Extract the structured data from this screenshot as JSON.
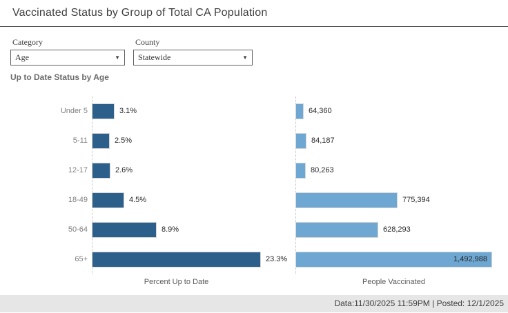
{
  "window": {
    "title": "Vaccinated Status by Group of Total CA Population"
  },
  "filters": {
    "category": {
      "label": "Category",
      "value": "Age"
    },
    "county": {
      "label": "County",
      "value": "Statewide"
    }
  },
  "section_title": "Up to Date Status by Age",
  "chart_data": {
    "type": "bar",
    "orientation": "horizontal",
    "title": "Up to Date Status by Age",
    "categories": [
      "Under 5",
      "5-11",
      "12-17",
      "18-49",
      "50-64",
      "65+"
    ],
    "series": [
      {
        "name": "Percent Up to Date",
        "axis_label": "Percent Up to Date",
        "values": [
          3.1,
          2.5,
          2.6,
          4.5,
          8.9,
          23.3
        ],
        "labels": [
          "3.1%",
          "2.5%",
          "2.6%",
          "4.5%",
          "8.9%",
          "23.3%"
        ],
        "color": "#2d5f8b",
        "xlim": [
          0,
          23.3
        ]
      },
      {
        "name": "People Vaccinated",
        "axis_label": "People Vaccinated",
        "values": [
          64360,
          84187,
          80263,
          775394,
          628293,
          1492988
        ],
        "labels": [
          "64,360",
          "84,187",
          "80,263",
          "775,394",
          "628,293",
          "1,492,988"
        ],
        "color": "#6da7d2",
        "xlim": [
          0,
          1492988
        ]
      }
    ],
    "grid": "dotted-baseline-only",
    "legend": "none"
  },
  "footer": {
    "text": "Data:11/30/2025 11:59PM | Posted: 12/1/2025"
  },
  "icons": {
    "dropdown_arrow": "▼"
  },
  "colors": {
    "percent_bar": "#2d5f8b",
    "people_bar": "#6da7d2",
    "footer_bg": "#e6e6e6"
  }
}
